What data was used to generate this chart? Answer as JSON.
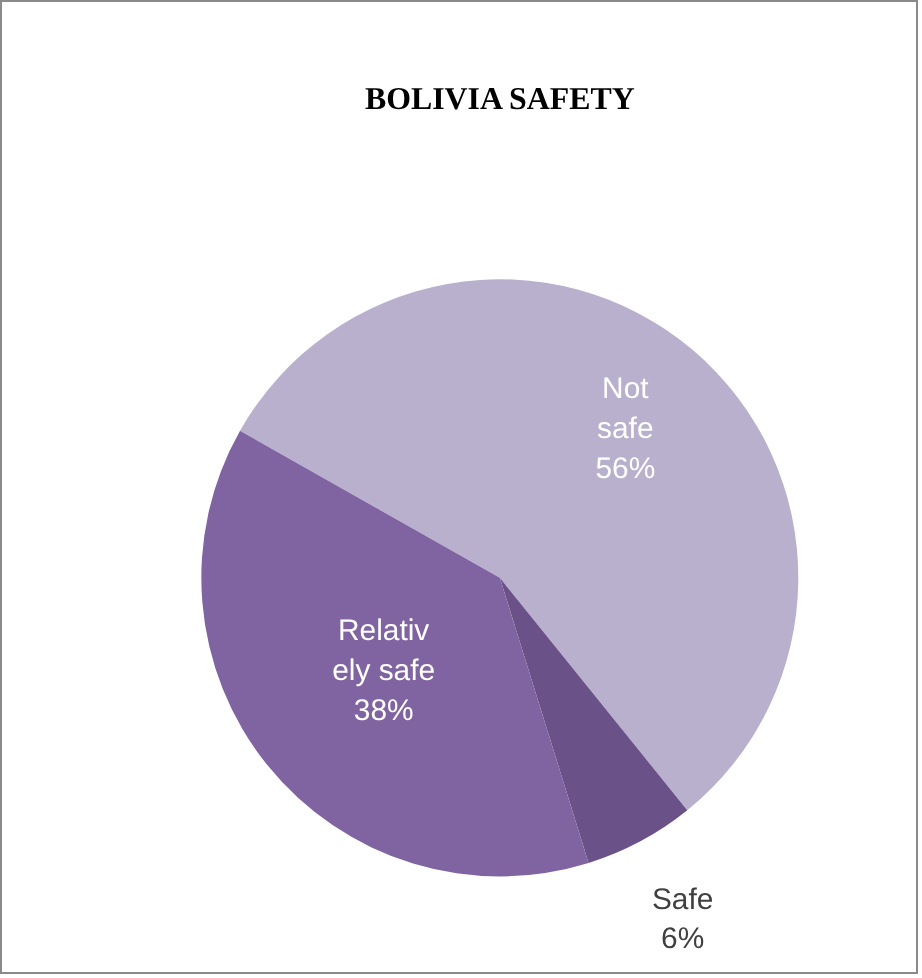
{
  "chart_data": {
    "type": "pie",
    "title": "BOLIVIA SAFETY",
    "categories": [
      "Not safe",
      "Safe",
      "Relatively safe"
    ],
    "values": [
      56,
      6,
      38
    ],
    "colors": [
      "#b9b0cd",
      "#6a5289",
      "#8064a2"
    ],
    "value_labels": [
      "56%",
      "6%",
      "38%"
    ],
    "legend": false
  }
}
